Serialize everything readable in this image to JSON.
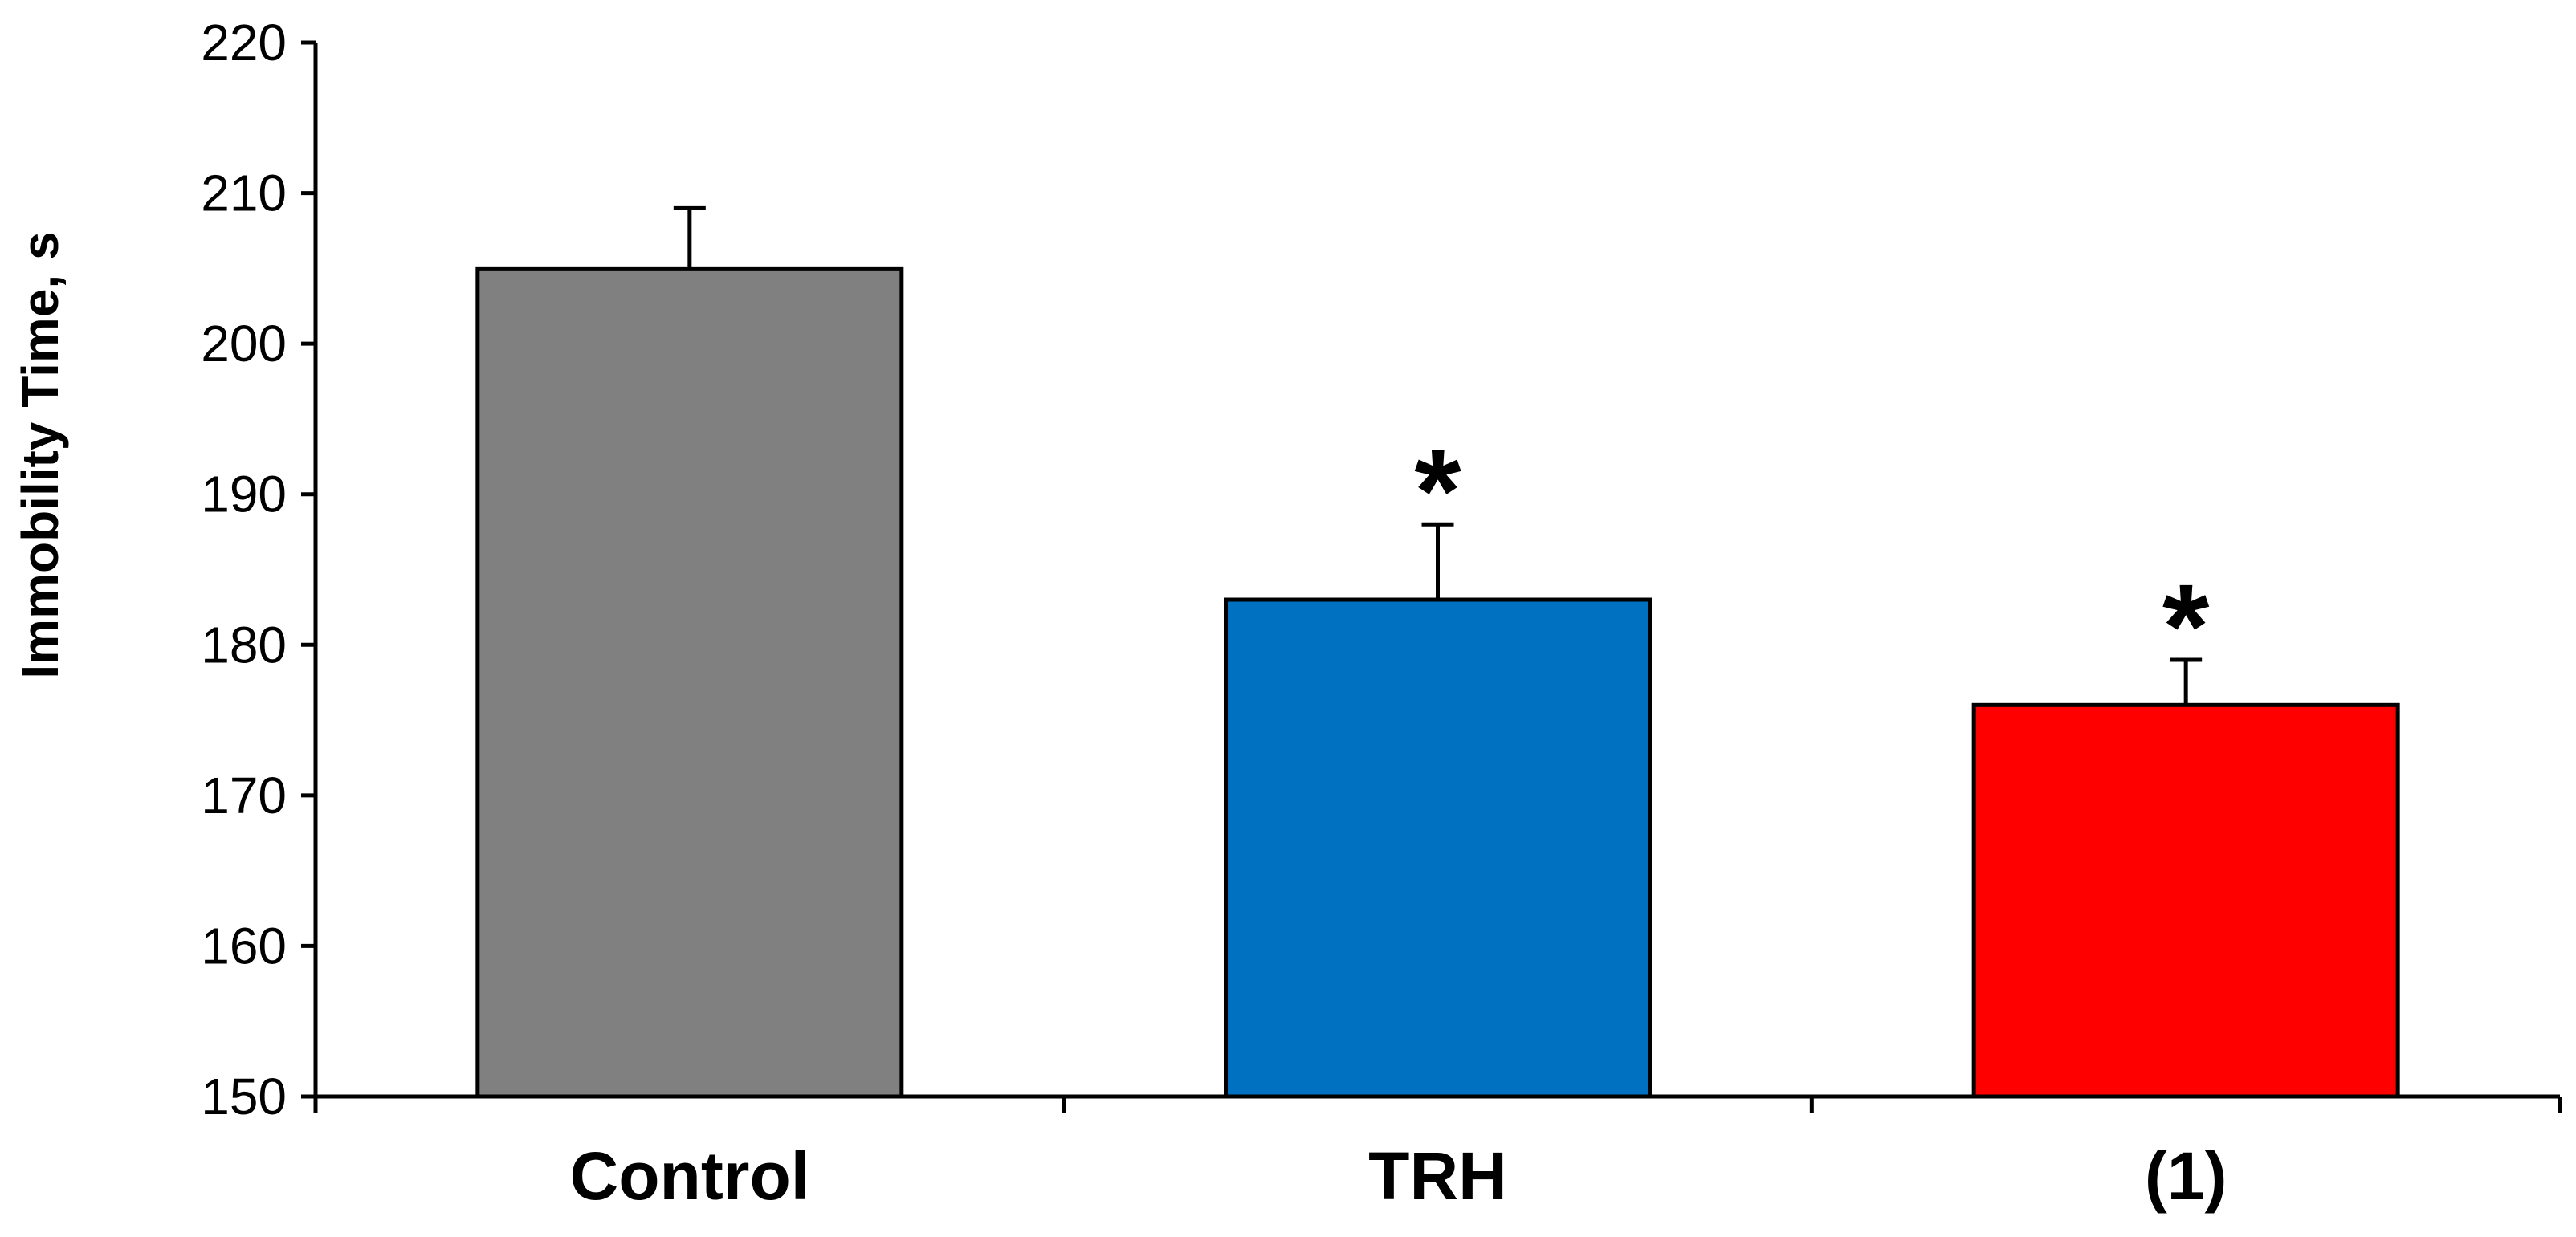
{
  "chart_data": {
    "type": "bar",
    "categories": [
      "Control",
      "TRH",
      "(1)"
    ],
    "values": [
      205,
      183,
      176
    ],
    "errors": [
      4,
      5,
      3
    ],
    "significance": [
      "",
      "*",
      "*"
    ],
    "colors": [
      "#808080",
      "#0070C0",
      "#FF0000"
    ],
    "ylabel": "Immobility Time, s",
    "xlabel": "",
    "title": "",
    "ylim": [
      150,
      220
    ],
    "yticks": [
      "150",
      "160",
      "170",
      "180",
      "190",
      "200",
      "210",
      "220"
    ],
    "grid": false,
    "legend": "none"
  }
}
